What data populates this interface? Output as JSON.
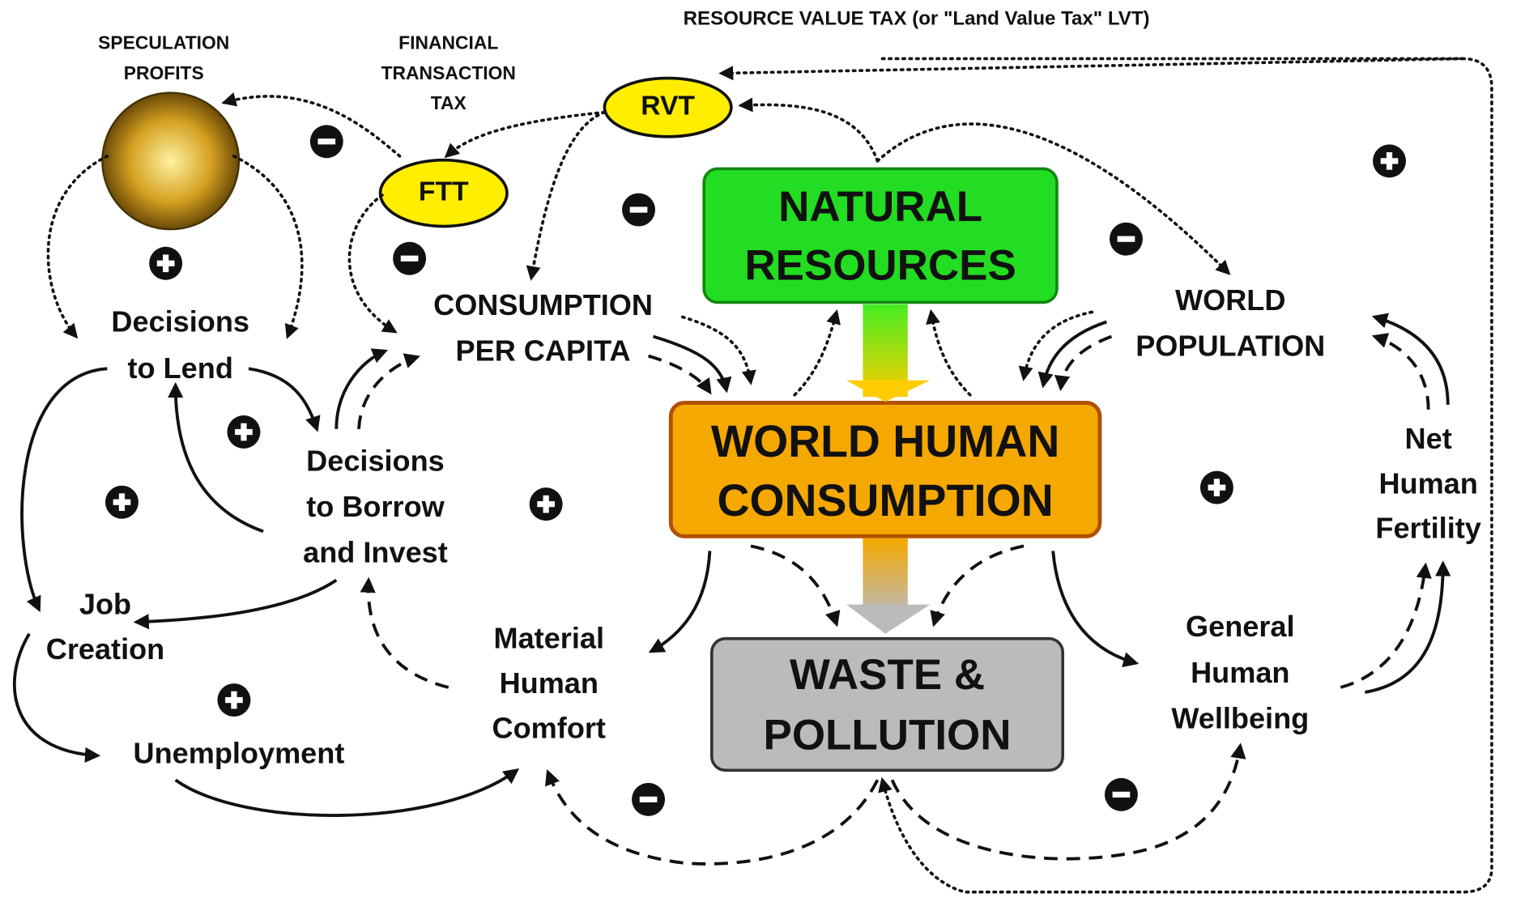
{
  "title": "RESOURCE VALUE TAX (or \"Land Value Tax\" LVT)",
  "nodes": [
    {
      "lines": [
        "SPECULATION",
        "PROFITS"
      ]
    },
    {
      "lines": [
        "FINANCIAL",
        "TRANSACTION",
        "TAX"
      ]
    },
    {
      "lines": [
        "RVT"
      ]
    },
    {
      "lines": [
        "FTT"
      ]
    },
    {
      "lines": [
        "NATURAL",
        "RESOURCES"
      ]
    },
    {
      "lines": [
        "CONSUMPTION",
        "PER CAPITA"
      ]
    },
    {
      "lines": [
        "WORLD",
        "POPULATION"
      ]
    },
    {
      "lines": [
        "Decisions",
        "to Lend"
      ]
    },
    {
      "lines": [
        "Decisions",
        "to Borrow",
        "and Invest"
      ]
    },
    {
      "lines": [
        "WORLD HUMAN",
        "CONSUMPTION"
      ]
    },
    {
      "lines": [
        "Net",
        "Human",
        "Fertility"
      ]
    },
    {
      "lines": [
        "Job",
        "Creation"
      ]
    },
    {
      "lines": [
        "Material",
        "Human",
        "Comfort"
      ]
    },
    {
      "lines": [
        "WASTE &",
        "POLLUTION"
      ]
    },
    {
      "lines": [
        "General",
        "Human",
        "Wellbeing"
      ]
    },
    {
      "lines": [
        "Unemployment"
      ]
    }
  ]
}
